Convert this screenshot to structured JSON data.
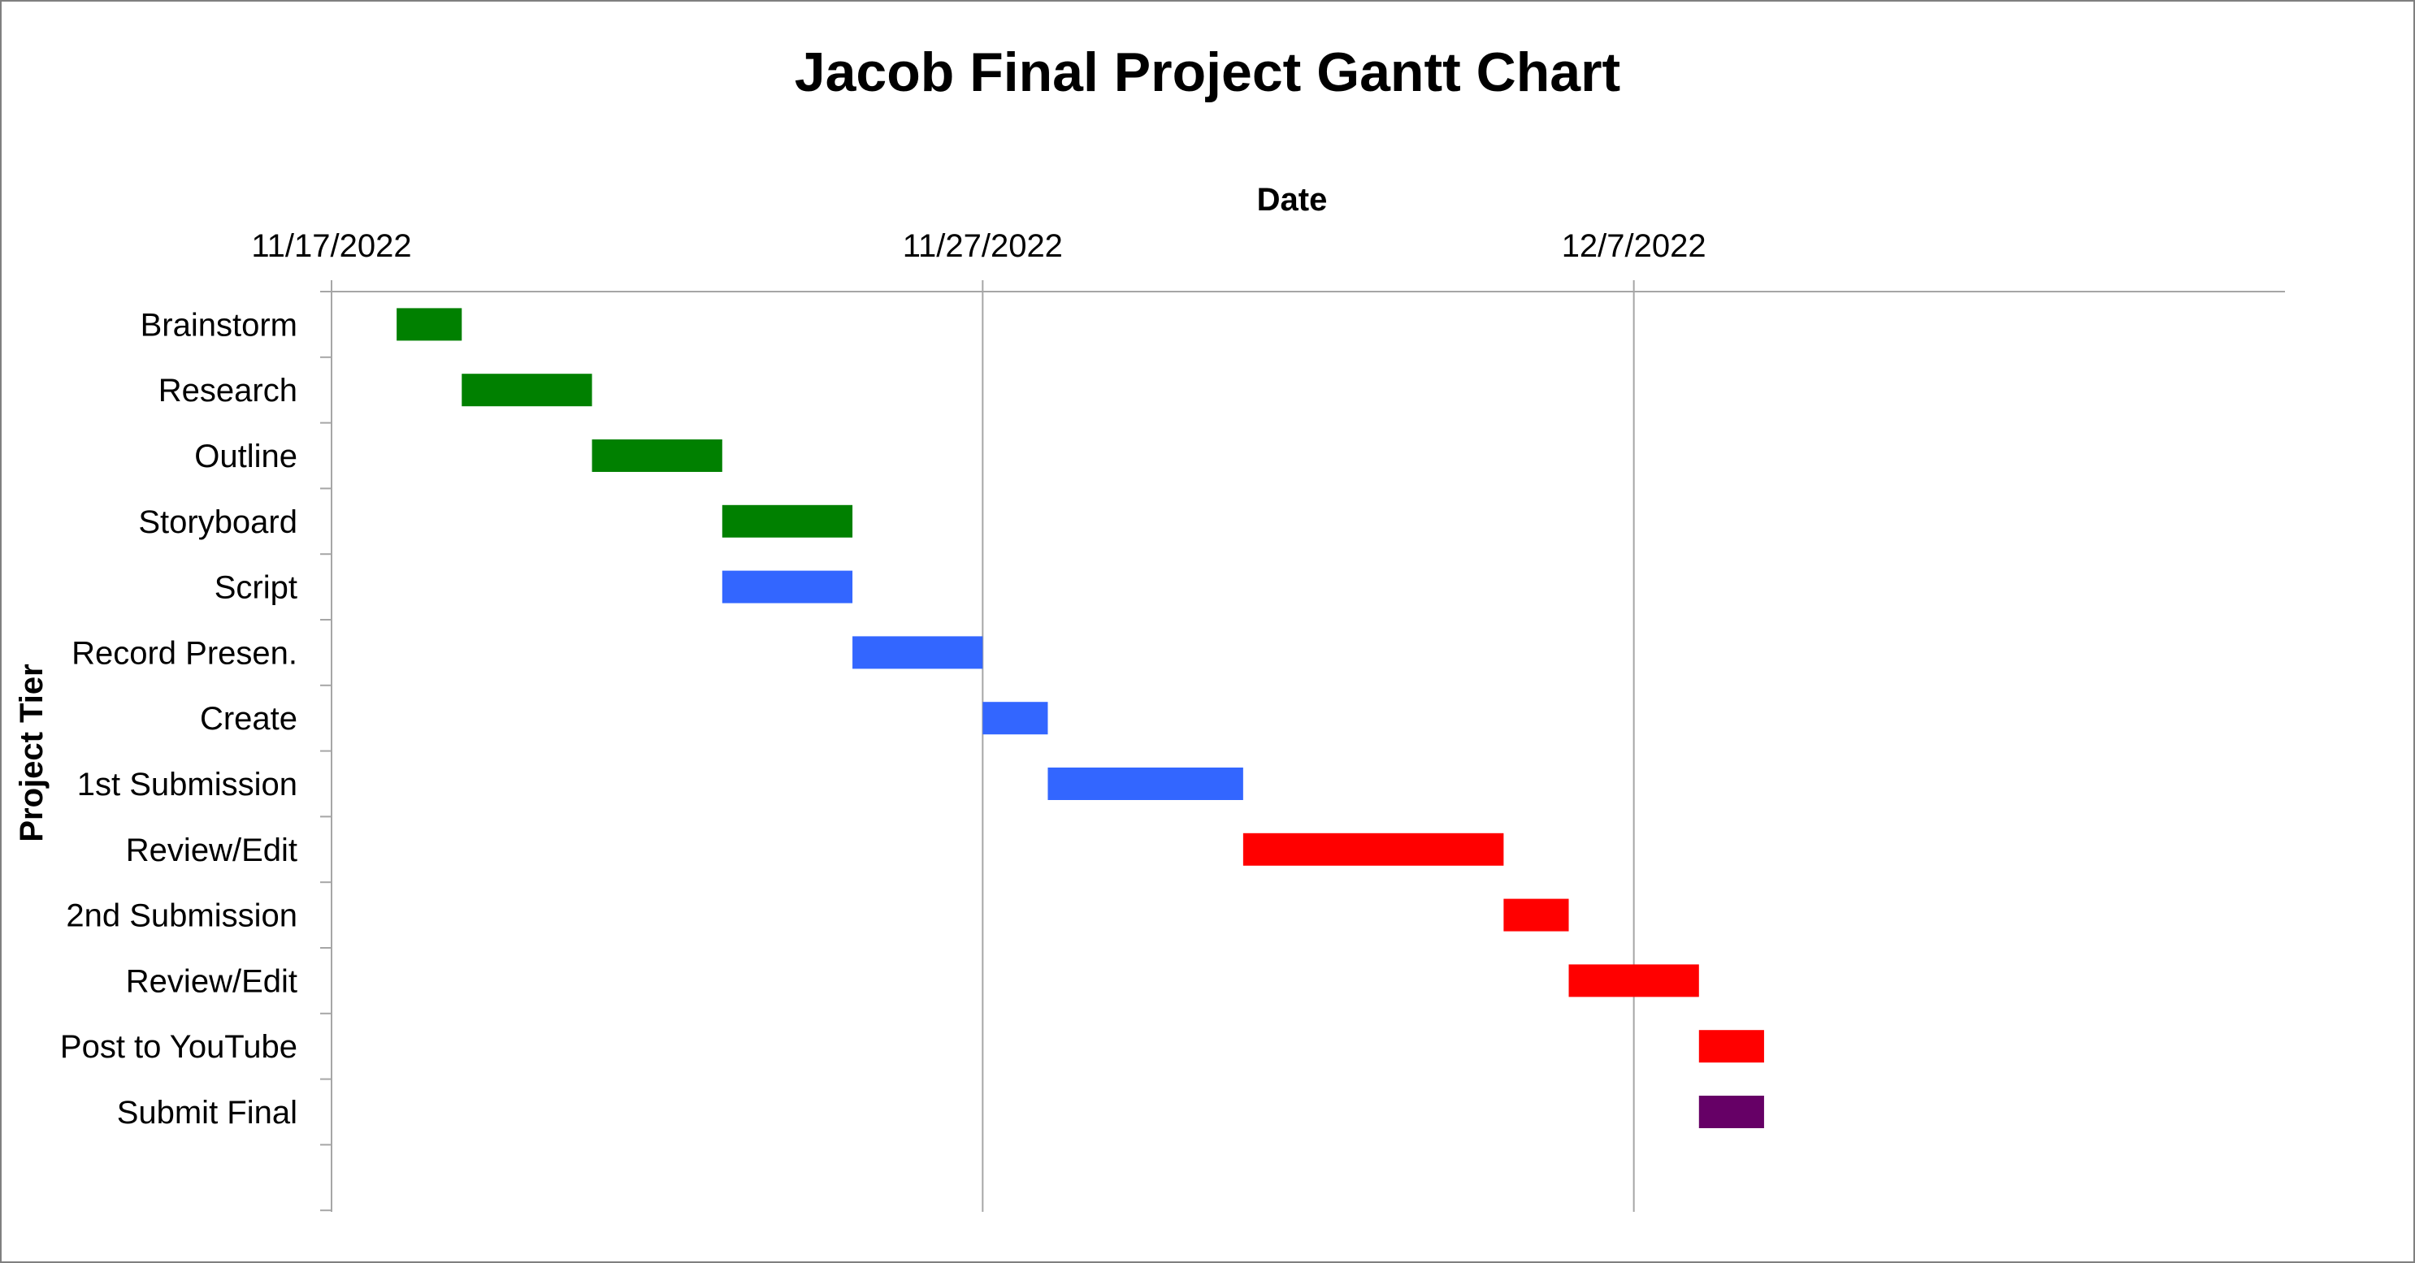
{
  "chart_data": {
    "type": "bar",
    "orientation": "horizontal",
    "subtype": "gantt",
    "title": "Jacob Final Project Gantt Chart",
    "xlabel": "Date",
    "ylabel": "Project Tier",
    "x_axis_position": "top",
    "xlim": [
      "11/17/2022",
      "12/17/2022"
    ],
    "x_ticks": [
      "11/17/2022",
      "11/27/2022",
      "12/7/2022"
    ],
    "grid": {
      "vertical_major": true,
      "horizontal": false
    },
    "legend": "none",
    "categories": [
      "Brainstorm",
      "Research",
      "Outline",
      "Storyboard",
      "Script",
      "Record Presen.",
      "Create",
      "1st Submission",
      "Review/Edit",
      "2nd Submission",
      "Review/Edit",
      "Post to YouTube",
      "Submit Final"
    ],
    "tasks": [
      {
        "label": "Brainstorm",
        "start": "11/18/2022",
        "end": "11/19/2022",
        "color": "#008000"
      },
      {
        "label": "Research",
        "start": "11/19/2022",
        "end": "11/21/2022",
        "color": "#008000"
      },
      {
        "label": "Outline",
        "start": "11/21/2022",
        "end": "11/23/2022",
        "color": "#008000"
      },
      {
        "label": "Storyboard",
        "start": "11/23/2022",
        "end": "11/25/2022",
        "color": "#008000"
      },
      {
        "label": "Script",
        "start": "11/23/2022",
        "end": "11/25/2022",
        "color": "#3366ff"
      },
      {
        "label": "Record Presen.",
        "start": "11/25/2022",
        "end": "11/27/2022",
        "color": "#3366ff"
      },
      {
        "label": "Create",
        "start": "11/27/2022",
        "end": "11/28/2022",
        "color": "#3366ff"
      },
      {
        "label": "1st Submission",
        "start": "11/28/2022",
        "end": "12/1/2022",
        "color": "#3366ff"
      },
      {
        "label": "Review/Edit",
        "start": "12/1/2022",
        "end": "12/5/2022",
        "color": "#ff0000"
      },
      {
        "label": "2nd Submission",
        "start": "12/5/2022",
        "end": "12/6/2022",
        "color": "#ff0000"
      },
      {
        "label": "Review/Edit",
        "start": "12/6/2022",
        "end": "12/8/2022",
        "color": "#ff0000"
      },
      {
        "label": "Post to YouTube",
        "start": "12/8/2022",
        "end": "12/9/2022",
        "color": "#ff0000"
      },
      {
        "label": "Submit Final",
        "start": "12/8/2022",
        "end": "12/9/2022",
        "color": "#660066"
      }
    ]
  }
}
